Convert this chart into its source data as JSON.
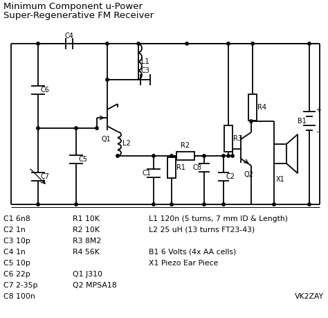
{
  "title_line1": "Minimum Component u-Power",
  "title_line2": "Super-Regenerative FM Receiver",
  "bg_color": "#ffffff",
  "text_color": "#000000",
  "bom_lines": [
    [
      "C1 6n8",
      "R1 10K",
      "L1 120n (5 turns, 7 mm ID & Length)"
    ],
    [
      "C2 1n",
      "R2 10K",
      "L2 25 uH (13 turns FT23-43)"
    ],
    [
      "C3 10p",
      "R3 8M2",
      ""
    ],
    [
      "C4 1n",
      "R4 56K",
      "B1 6 Volts (4x AA cells)"
    ],
    [
      "C5 10p",
      "",
      "X1 Piezo Ear Piece"
    ],
    [
      "C6 22p",
      "Q1 J310",
      ""
    ],
    [
      "C7 2-35p",
      "Q2 MPSA18",
      ""
    ],
    [
      "C8 100n",
      "",
      "VK2ZAY"
    ]
  ],
  "figsize": [
    4.74,
    4.59
  ],
  "dpi": 100
}
